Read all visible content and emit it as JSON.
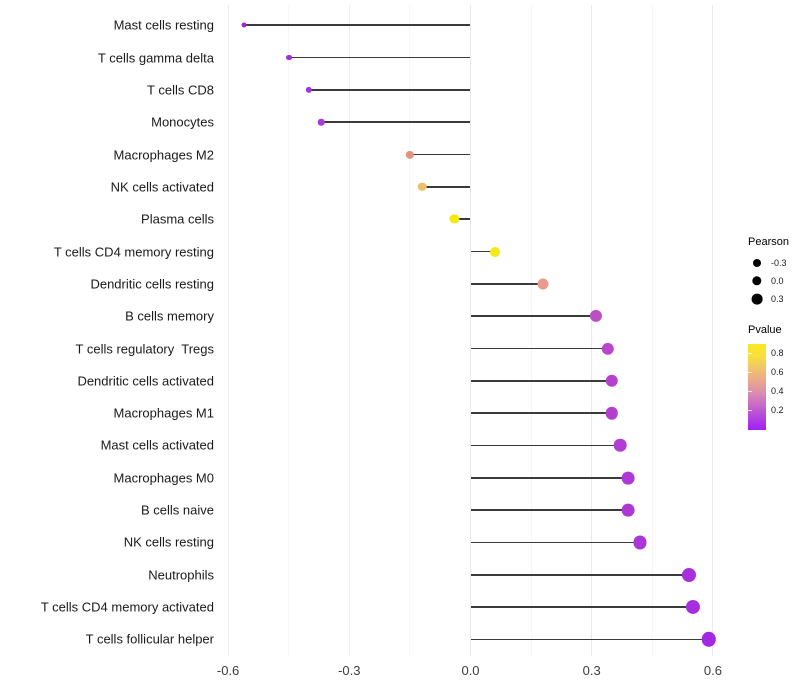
{
  "chart_data": {
    "type": "scatter",
    "subtype": "lollipop",
    "orientation": "horizontal",
    "title": "",
    "xlabel": "",
    "ylabel": "",
    "grid": "vertical-major-minor",
    "legend_position": "right",
    "baseline": 0.0,
    "xlim": [
      -0.72,
      0.72
    ],
    "x_ticks": [
      {
        "value": -0.6,
        "label": "-0.6"
      },
      {
        "value": -0.3,
        "label": "-0.3"
      },
      {
        "value": 0.0,
        "label": "0.0"
      },
      {
        "value": 0.3,
        "label": "0.3"
      },
      {
        "value": 0.6,
        "label": "0.6"
      }
    ],
    "x_minor_ticks": [
      -0.45,
      -0.15,
      0.15,
      0.45
    ],
    "categories": [
      "Mast cells resting",
      "T cells gamma delta",
      "T cells CD8",
      "Monocytes",
      "Macrophages M2",
      "NK cells activated",
      "Plasma cells",
      "T cells CD4 memory resting",
      "Dendritic cells resting",
      "B cells memory",
      "T cells regulatory  Tregs",
      "Dendritic cells activated",
      "Macrophages M1",
      "Mast cells activated",
      "Macrophages M0",
      "B cells naive",
      "NK cells resting",
      "Neutrophils",
      "T cells CD4 memory activated",
      "T cells follicular helper"
    ],
    "series": [
      {
        "name": "Pearson",
        "values": [
          -0.56,
          -0.45,
          -0.4,
          -0.37,
          -0.15,
          -0.12,
          -0.04,
          0.06,
          0.18,
          0.31,
          0.34,
          0.35,
          0.35,
          0.37,
          0.39,
          0.39,
          0.42,
          0.54,
          0.55,
          0.59
        ]
      },
      {
        "name": "Pvalue (estimated from color scale)",
        "values": [
          0.08,
          0.09,
          0.1,
          0.14,
          0.57,
          0.7,
          0.88,
          0.86,
          0.52,
          0.24,
          0.21,
          0.2,
          0.18,
          0.17,
          0.15,
          0.15,
          0.13,
          0.1,
          0.1,
          0.06
        ]
      }
    ],
    "point_colors": [
      "#9B2BDA",
      "#9D30DB",
      "#A134DA",
      "#A83CD6",
      "#E2947C",
      "#EDC169",
      "#F4EA11",
      "#F4E81A",
      "#E99A8C",
      "#BC4EC6",
      "#B846CB",
      "#B542CE",
      "#B33FD1",
      "#B23DD2",
      "#AF39D5",
      "#AE38D5",
      "#AC35D8",
      "#A72FDC",
      "#A72EDD",
      "#A328E2"
    ]
  },
  "legend_pearson": {
    "title": "Pearson",
    "entries": [
      {
        "label": "-0.3",
        "size": 8
      },
      {
        "label": "0.0",
        "size": 9.4
      },
      {
        "label": "0.3",
        "size": 10.8
      }
    ]
  },
  "legend_pvalue": {
    "title": "Pvalue",
    "tick_labels": [
      "0.8",
      "0.6",
      "0.4",
      "0.2"
    ],
    "gradient_bottom_to_top": [
      "#A01EF6",
      "#B244DE",
      "#C669C8",
      "#DA8CB0",
      "#E9A88C",
      "#F0C46C",
      "#F6DF3B",
      "#F8EA21"
    ]
  },
  "colors": {
    "background": "#ffffff",
    "stem": "#3b3b3b",
    "grid_major": "#ebebeb",
    "grid_minor": "#f6f6f6",
    "label_text": "#1a1a1a",
    "axis_text": "#3d3d3d",
    "legend_dot": "#000000"
  }
}
